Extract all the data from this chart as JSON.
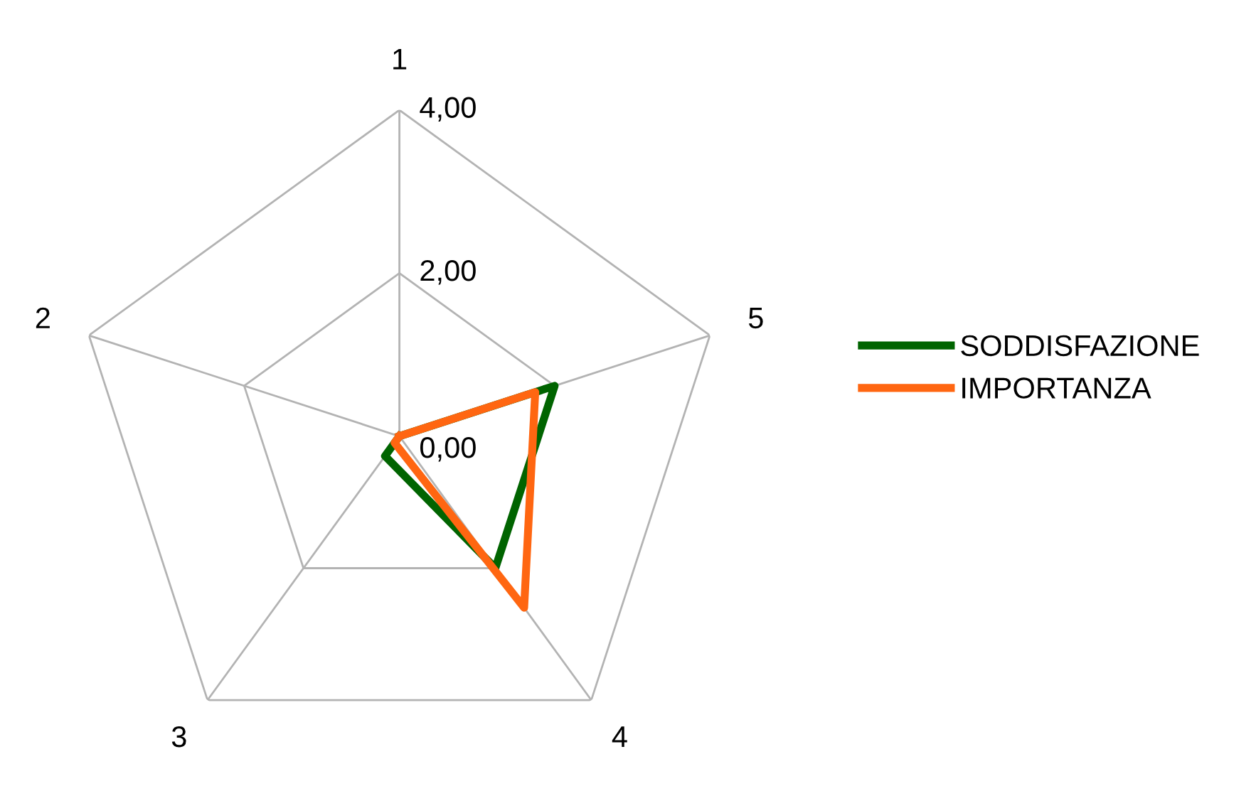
{
  "chart_data": {
    "type": "radar",
    "categories": [
      "1",
      "5",
      "4",
      "3",
      "2"
    ],
    "series": [
      {
        "name": "SODDISFAZIONE",
        "color": "#006400",
        "values": [
          0,
          2.0,
          2.0,
          0.3,
          0
        ]
      },
      {
        "name": "IMPORTANZA",
        "color": "#ff6611",
        "values": [
          0,
          1.75,
          2.6,
          0.1,
          0
        ]
      }
    ],
    "ylim": [
      0,
      4
    ],
    "yticks": [
      {
        "value": 0,
        "label": "0,00"
      },
      {
        "value": 2,
        "label": "2,00"
      },
      {
        "value": 4,
        "label": "4,00"
      }
    ],
    "grid": true,
    "legend": "right",
    "marker": "none",
    "line_style": "solid"
  }
}
